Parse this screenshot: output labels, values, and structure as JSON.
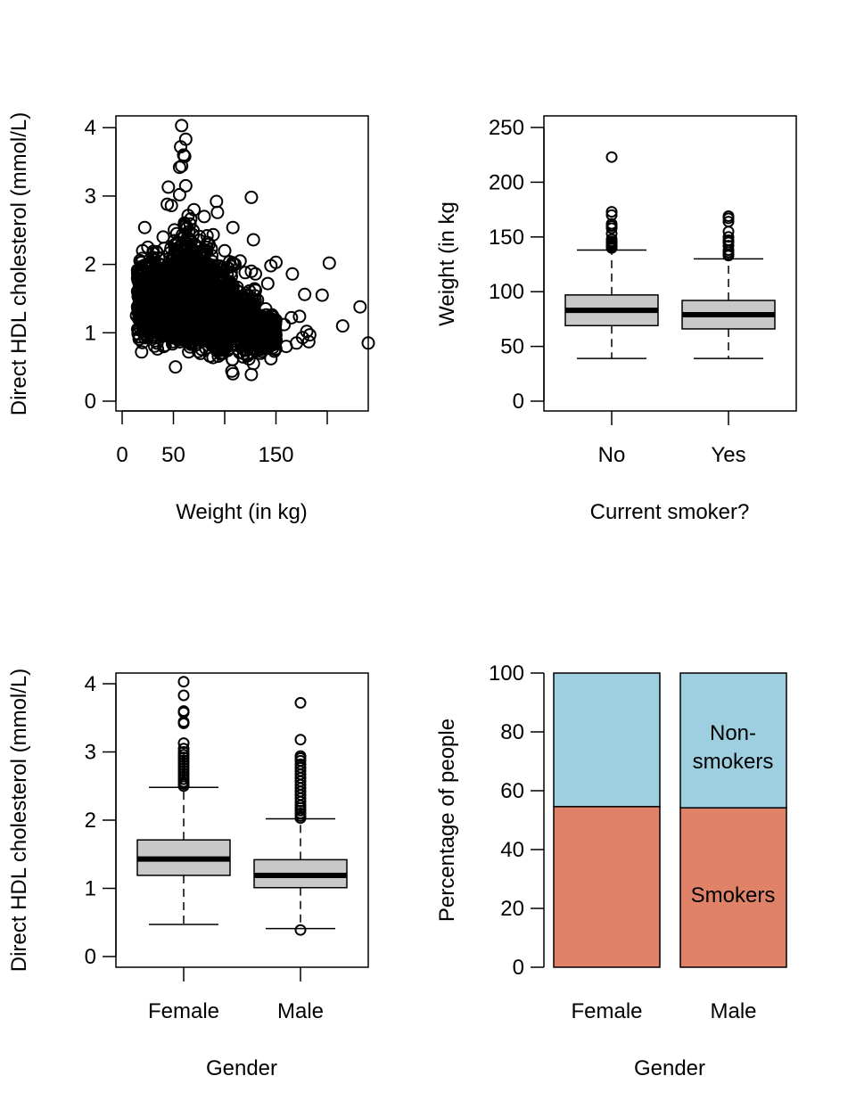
{
  "chart_data": [
    {
      "type": "scatter",
      "id": "hdl-vs-weight",
      "title": "",
      "xlabel": "Weight (in kg)",
      "ylabel": "Direct HDL cholesterol (mmol/L)",
      "xlim": [
        0,
        240
      ],
      "ylim": [
        0,
        4
      ],
      "xticks": [
        0,
        50,
        100,
        150,
        200
      ],
      "xtick_labels": [
        "0",
        "50",
        "",
        "150",
        ""
      ],
      "yticks": [
        0,
        1,
        2,
        3,
        4
      ],
      "ytick_labels": [
        "0",
        "1",
        "2",
        "3",
        "4"
      ],
      "marker": "open-circle",
      "dense_cloud_description": "Dense mass of points roughly spanning weight 15-130 kg and HDL 0.6-2.8 mmol/L, peaking near weight 60 kg",
      "points": [
        [
          58,
          4.03
        ],
        [
          62,
          3.83
        ],
        [
          57,
          3.72
        ],
        [
          60,
          3.6
        ],
        [
          61,
          3.58
        ],
        [
          58,
          3.44
        ],
        [
          56,
          3.42
        ],
        [
          62,
          3.15
        ],
        [
          45,
          3.13
        ],
        [
          56,
          3.02
        ],
        [
          126,
          2.98
        ],
        [
          92,
          2.92
        ],
        [
          93,
          2.76
        ],
        [
          44,
          2.88
        ],
        [
          48,
          2.86
        ],
        [
          22,
          2.54
        ],
        [
          108,
          2.54
        ],
        [
          128,
          2.36
        ],
        [
          150,
          2.03
        ],
        [
          202,
          2.02
        ],
        [
          166,
          1.86
        ],
        [
          145,
          1.98
        ],
        [
          142,
          1.72
        ],
        [
          178,
          1.56
        ],
        [
          195,
          1.55
        ],
        [
          232,
          1.38
        ],
        [
          215,
          1.1
        ],
        [
          240,
          0.85
        ],
        [
          173,
          1.24
        ],
        [
          165,
          1.22
        ],
        [
          158,
          1.12
        ],
        [
          180,
          1.02
        ],
        [
          183,
          0.97
        ],
        [
          176,
          0.93
        ],
        [
          182,
          0.87
        ],
        [
          19,
          0.72
        ],
        [
          52,
          0.5
        ],
        [
          108,
          0.4
        ],
        [
          126,
          0.39
        ],
        [
          107,
          0.44
        ],
        [
          128,
          0.55
        ],
        [
          145,
          0.62
        ],
        [
          160,
          0.8
        ],
        [
          150,
          0.9
        ],
        [
          135,
          0.7
        ],
        [
          170,
          0.85
        ],
        [
          140,
          1.35
        ],
        [
          132,
          1.48
        ],
        [
          120,
          1.88
        ],
        [
          126,
          1.9
        ],
        [
          130,
          1.86
        ],
        [
          115,
          2.05
        ],
        [
          110,
          2.0
        ],
        [
          100,
          2.2
        ],
        [
          20,
          2.2
        ],
        [
          25,
          2.25
        ],
        [
          15,
          1.8
        ],
        [
          14,
          1.25
        ],
        [
          16,
          1.55
        ],
        [
          30,
          2.1
        ],
        [
          40,
          2.4
        ],
        [
          70,
          2.8
        ],
        [
          80,
          2.7
        ]
      ],
      "cloud": [
        {
          "x": [
            15,
            30
          ],
          "y": [
            0.85,
            2.1
          ]
        },
        {
          "x": [
            30,
            50
          ],
          "y": [
            0.7,
            2.3
          ]
        },
        {
          "x": [
            50,
            70
          ],
          "y": [
            0.65,
            2.75
          ]
        },
        {
          "x": [
            70,
            90
          ],
          "y": [
            0.6,
            2.5
          ]
        },
        {
          "x": [
            90,
            110
          ],
          "y": [
            0.55,
            2.1
          ]
        },
        {
          "x": [
            110,
            130
          ],
          "y": [
            0.6,
            1.7
          ]
        },
        {
          "x": [
            130,
            150
          ],
          "y": [
            0.7,
            1.3
          ]
        }
      ]
    },
    {
      "type": "boxplot",
      "id": "weight-by-smoker",
      "xlabel": "Current smoker?",
      "ylabel": "Weight (in kg",
      "ylim": [
        0,
        250
      ],
      "yticks": [
        0,
        50,
        100,
        150,
        200,
        250
      ],
      "ytick_labels": [
        "0",
        "50",
        "100",
        "150",
        "200",
        "250"
      ],
      "categories": [
        "No",
        "Yes"
      ],
      "box_fill": "#c8c8c8",
      "boxes": [
        {
          "category": "No",
          "whisker_low": 39,
          "q1": 69,
          "median": 83,
          "q3": 97,
          "whisker_high": 138,
          "outliers": [
            140,
            141,
            142,
            143,
            144,
            145,
            146,
            148,
            153,
            158,
            160,
            162,
            170,
            173,
            223
          ]
        },
        {
          "category": "Yes",
          "whisker_low": 39,
          "q1": 66,
          "median": 79,
          "q3": 92,
          "whisker_high": 130,
          "outliers": [
            133,
            134,
            136,
            138,
            142,
            145,
            147,
            150,
            155,
            164,
            167,
            169
          ]
        }
      ]
    },
    {
      "type": "boxplot",
      "id": "hdl-by-gender",
      "xlabel": "Gender",
      "ylabel": "Direct HDL cholesterol (mmol/L)",
      "ylim": [
        0,
        4
      ],
      "yticks": [
        0,
        1,
        2,
        3,
        4
      ],
      "ytick_labels": [
        "0",
        "1",
        "2",
        "3",
        "4"
      ],
      "categories": [
        "Female",
        "Male"
      ],
      "box_fill": "#c8c8c8",
      "boxes": [
        {
          "category": "Female",
          "whisker_low": 0.47,
          "q1": 1.19,
          "median": 1.43,
          "q3": 1.71,
          "whisker_high": 2.48,
          "outliers": [
            2.5,
            2.53,
            2.56,
            2.6,
            2.64,
            2.68,
            2.72,
            2.76,
            2.8,
            2.84,
            2.88,
            2.92,
            2.96,
            3.0,
            3.05,
            3.13,
            3.42,
            3.44,
            3.58,
            3.6,
            3.83,
            4.03
          ]
        },
        {
          "category": "Male",
          "whisker_low": 0.41,
          "q1": 1.01,
          "median": 1.19,
          "q3": 1.42,
          "whisker_high": 2.02,
          "outliers": [
            0.39,
            2.03,
            2.06,
            2.1,
            2.14,
            2.18,
            2.22,
            2.27,
            2.32,
            2.37,
            2.42,
            2.47,
            2.52,
            2.57,
            2.62,
            2.67,
            2.72,
            2.77,
            2.82,
            2.87,
            2.91,
            2.94,
            3.18,
            3.72
          ]
        }
      ]
    },
    {
      "type": "bar",
      "stacked": true,
      "id": "smoking-by-gender",
      "xlabel": "Gender",
      "ylabel": "Percentage of people",
      "ylim": [
        0,
        100
      ],
      "yticks": [
        0,
        20,
        40,
        60,
        80,
        100
      ],
      "ytick_labels": [
        "0",
        "20",
        "40",
        "60",
        "80",
        "100"
      ],
      "categories": [
        "Female",
        "Male"
      ],
      "series": [
        {
          "name": "Smokers",
          "color": "#e08268",
          "values": [
            54.6,
            54.2
          ]
        },
        {
          "name": "Non-smokers",
          "color": "#9ecfe0",
          "values": [
            45.4,
            45.8
          ]
        }
      ],
      "annotations": {
        "nonsmokers_line1": "Non-",
        "nonsmokers_line2": "smokers",
        "smokers": "Smokers"
      }
    }
  ]
}
